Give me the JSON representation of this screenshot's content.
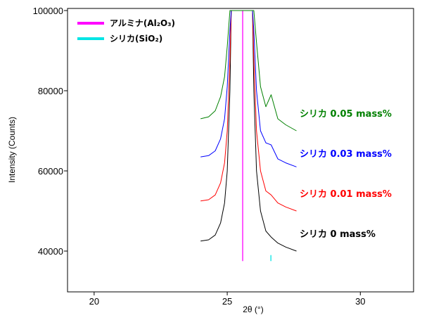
{
  "chart_data": {
    "type": "line",
    "xlabel": "2θ (°)",
    "ylabel": "Intensity (Counts)",
    "xlim": [
      19,
      32
    ],
    "ylim": [
      30000,
      100000
    ],
    "x_ticks": [
      20,
      25,
      30
    ],
    "y_ticks": [
      40000,
      60000,
      80000,
      100000
    ],
    "x_tick_labels": [
      "20",
      "25",
      "30"
    ],
    "y_tick_labels": [
      "40000",
      "60000",
      "80000",
      "100000"
    ],
    "legend": {
      "position": "top-left",
      "entries": [
        {
          "label": "アルミナ(Al₂O₃)",
          "color": "#ff00ff"
        },
        {
          "label": "シリカ(SiO₂)",
          "color": "#00e5e5"
        }
      ]
    },
    "reference_lines": [
      {
        "name": "アルミナ(Al₂O₃)",
        "x": 25.58,
        "y_from": 37500,
        "y_to": 100000,
        "color": "#ff00ff"
      },
      {
        "name": "シリカ(SiO₂)",
        "x": 26.64,
        "y_from": 37500,
        "y_to": 39000,
        "color": "#00e5e5"
      }
    ],
    "series": [
      {
        "name": "シリカ 0 mass%",
        "color": "#000000",
        "x": [
          24.0,
          24.3,
          24.55,
          24.75,
          24.9,
          25.0,
          25.1,
          25.15,
          25.95,
          26.0,
          26.1,
          26.25,
          26.45,
          26.65,
          26.9,
          27.2,
          27.6
        ],
        "y": [
          42500,
          42800,
          44000,
          47000,
          52000,
          60000,
          80000,
          100000,
          100000,
          80000,
          60000,
          50000,
          45000,
          43500,
          42000,
          41000,
          40000
        ]
      },
      {
        "name": "シリカ 0.01 mass%",
        "color": "#ff0000",
        "x": [
          24.0,
          24.3,
          24.55,
          24.75,
          24.9,
          25.0,
          25.1,
          25.15,
          25.95,
          26.0,
          26.1,
          26.25,
          26.45,
          26.65,
          26.9,
          27.2,
          27.6
        ],
        "y": [
          52500,
          52800,
          54000,
          57000,
          62000,
          70000,
          88000,
          100000,
          100000,
          88000,
          70000,
          60000,
          55000,
          54000,
          52000,
          51000,
          50000
        ]
      },
      {
        "name": "シリカ 0.03 mass%",
        "color": "#0000ff",
        "x": [
          24.0,
          24.3,
          24.55,
          24.75,
          24.9,
          25.0,
          25.1,
          25.15,
          25.95,
          26.0,
          26.1,
          26.25,
          26.45,
          26.65,
          26.9,
          27.2,
          27.6
        ],
        "y": [
          63500,
          63800,
          65000,
          68000,
          73000,
          81000,
          95000,
          100000,
          100000,
          95000,
          80000,
          70000,
          67000,
          66500,
          63000,
          62000,
          61000
        ]
      },
      {
        "name": "シリカ 0.05 mass%",
        "color": "#008000",
        "x": [
          24.0,
          24.3,
          24.55,
          24.75,
          24.9,
          25.0,
          25.1,
          25.15,
          25.95,
          26.0,
          26.1,
          26.25,
          26.45,
          26.65,
          26.9,
          27.2,
          27.6
        ],
        "y": [
          73000,
          73500,
          75000,
          78500,
          83500,
          91000,
          100000,
          100000,
          100000,
          100000,
          92000,
          81000,
          76000,
          79000,
          73000,
          71500,
          70000
        ]
      }
    ],
    "series_labels": [
      {
        "text": "シリカ 0.05 mass%",
        "color": "#008000",
        "y": 73500
      },
      {
        "text": "シリカ 0.03 mass%",
        "color": "#0000ff",
        "y": 63500
      },
      {
        "text": "シリカ 0.01 mass%",
        "color": "#ff0000",
        "y": 53500
      },
      {
        "text": "シリカ 0 mass%",
        "color": "#000000",
        "y": 43500
      }
    ],
    "grid": false
  }
}
